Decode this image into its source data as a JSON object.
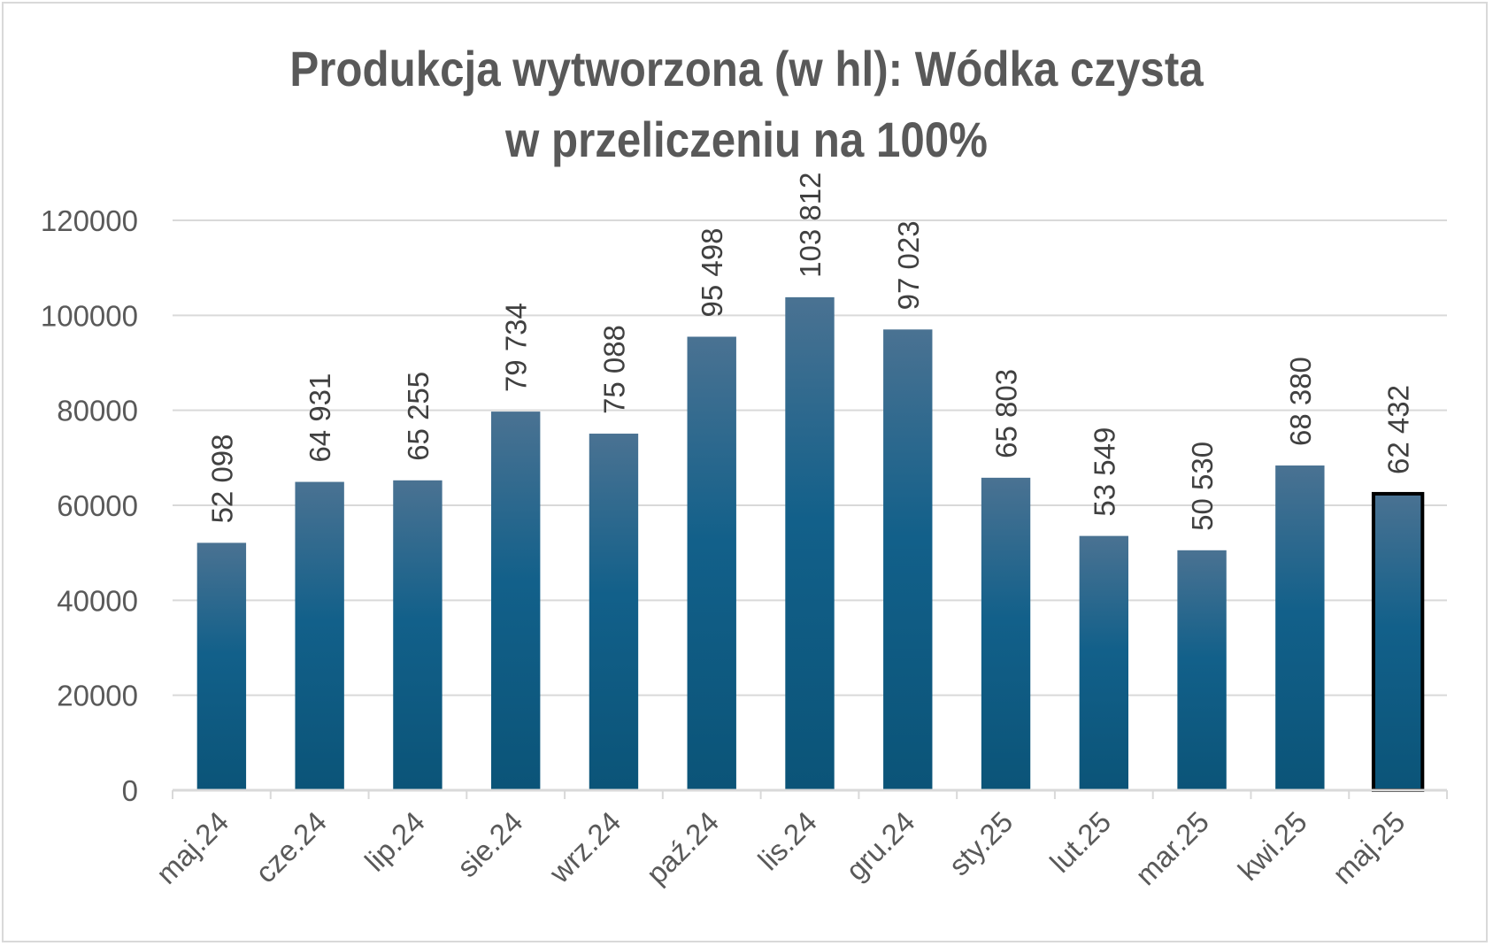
{
  "chart_data": {
    "type": "bar",
    "title_line1": "Produkcja wytworzona (w hl): Wódka czysta",
    "title_line2": "w przeliczeniu na 100%",
    "xlabel": "",
    "ylabel": "",
    "ylim": [
      0,
      120000
    ],
    "yticks": [
      0,
      20000,
      40000,
      60000,
      80000,
      100000,
      120000
    ],
    "ytick_labels": [
      "0",
      "20000",
      "40000",
      "60000",
      "80000",
      "100000",
      "120000"
    ],
    "grid": true,
    "categories": [
      "maj.24",
      "cze.24",
      "lip.24",
      "sie.24",
      "wrz.24",
      "paź.24",
      "lis.24",
      "gru.24",
      "sty.25",
      "lut.25",
      "mar.25",
      "kwi.25",
      "maj.25"
    ],
    "values": [
      52098,
      64931,
      65255,
      79734,
      75088,
      95498,
      103812,
      97023,
      65803,
      53549,
      50530,
      68380,
      62432
    ],
    "data_labels": [
      "52 098",
      "64 931",
      "65 255",
      "79 734",
      "75 088",
      "95 498",
      "103 812",
      "97 023",
      "65 803",
      "53 549",
      "50 530",
      "68 380",
      "62 432"
    ],
    "highlighted_category": "maj.25",
    "colors": {
      "bar_top": "#4a7292",
      "bar_bottom": "#0b5478",
      "highlight_border": "#000000",
      "grid": "#d9d9d9",
      "text": "#595959"
    }
  }
}
